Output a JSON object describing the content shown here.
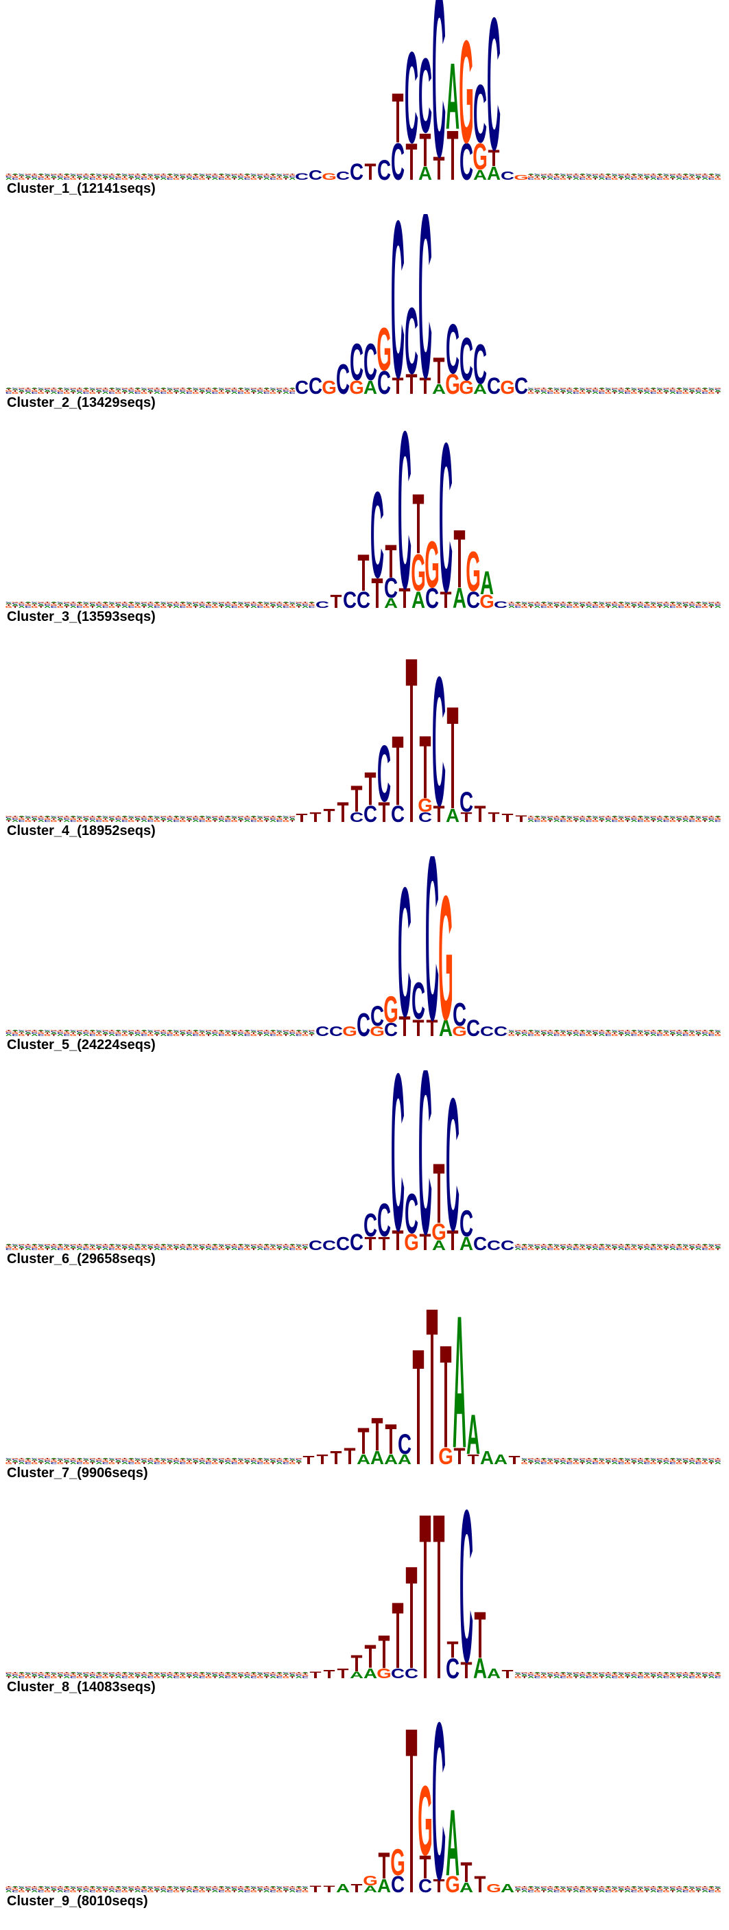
{
  "colors": {
    "A": "#008000",
    "C": "#000080",
    "G": "#ff4500",
    "T": "#800000"
  },
  "clusters": [
    {
      "label": "Cluster_1_(12141seqs)",
      "motif": [
        {
          "l": "C",
          "h": 0.04
        },
        {
          "l": "C",
          "h": 0.06
        },
        {
          "l": "G",
          "h": 0.04
        },
        {
          "l": "C",
          "h": 0.05
        },
        {
          "l": "C",
          "h": 0.1
        },
        {
          "l": "T",
          "h": 0.1
        },
        {
          "l": "C",
          "h": 0.12
        },
        {
          "l": "T",
          "h": 0.3,
          "under": [
            {
              "l": "C",
              "h": 0.22
            }
          ]
        },
        {
          "l": "C",
          "h": 0.55,
          "under": [
            {
              "l": "T",
              "h": 0.22
            }
          ]
        },
        {
          "l": "C",
          "h": 0.45,
          "under": [
            {
              "l": "T",
              "h": 0.2
            },
            {
              "l": "A",
              "h": 0.08
            }
          ]
        },
        {
          "l": "C",
          "h": 1.0,
          "under": [
            {
              "l": "T",
              "h": 0.14
            }
          ]
        },
        {
          "l": "A",
          "h": 0.4,
          "under": [
            {
              "l": "T",
              "h": 0.3
            }
          ]
        },
        {
          "l": "G",
          "h": 0.62,
          "under": [
            {
              "l": "C",
              "h": 0.22
            }
          ]
        },
        {
          "l": "C",
          "h": 0.35,
          "under": [
            {
              "l": "G",
              "h": 0.16
            },
            {
              "l": "A",
              "h": 0.06
            }
          ]
        },
        {
          "l": "C",
          "h": 0.8,
          "under": [
            {
              "l": "T",
              "h": 0.1
            },
            {
              "l": "A",
              "h": 0.08
            }
          ]
        },
        {
          "l": "C",
          "h": 0.05
        },
        {
          "l": "G",
          "h": 0.03
        }
      ]
    },
    {
      "label": "Cluster_2_(13429seqs)",
      "motif": [
        {
          "l": "C",
          "h": 0.08
        },
        {
          "l": "C",
          "h": 0.1
        },
        {
          "l": "G",
          "h": 0.08
        },
        {
          "l": "C",
          "h": 0.18
        },
        {
          "l": "C",
          "h": 0.22,
          "under": [
            {
              "l": "G",
              "h": 0.08
            }
          ]
        },
        {
          "l": "C",
          "h": 0.22,
          "under": [
            {
              "l": "A",
              "h": 0.08
            }
          ]
        },
        {
          "l": "G",
          "h": 0.26,
          "under": [
            {
              "l": "C",
              "h": 0.14
            }
          ]
        },
        {
          "l": "C",
          "h": 0.95,
          "under": [
            {
              "l": "T",
              "h": 0.1
            }
          ]
        },
        {
          "l": "C",
          "h": 0.4,
          "under": [
            {
              "l": "T",
              "h": 0.12
            }
          ]
        },
        {
          "l": "C",
          "h": 1.0,
          "under": [
            {
              "l": "T",
              "h": 0.1
            }
          ]
        },
        {
          "l": "T",
          "h": 0.16,
          "under": [
            {
              "l": "A",
              "h": 0.06
            }
          ]
        },
        {
          "l": "C",
          "h": 0.3,
          "under": [
            {
              "l": "G",
              "h": 0.12
            }
          ]
        },
        {
          "l": "C",
          "h": 0.26,
          "under": [
            {
              "l": "G",
              "h": 0.08
            }
          ]
        },
        {
          "l": "C",
          "h": 0.24,
          "under": [
            {
              "l": "A",
              "h": 0.06
            }
          ]
        },
        {
          "l": "C",
          "h": 0.1
        },
        {
          "l": "G",
          "h": 0.08
        },
        {
          "l": "C",
          "h": 0.1
        }
      ]
    },
    {
      "label": "Cluster_3_(13593seqs)",
      "motif": [
        {
          "l": "C",
          "h": 0.04
        },
        {
          "l": "T",
          "h": 0.08
        },
        {
          "l": "C",
          "h": 0.1
        },
        {
          "l": "T",
          "h": 0.22,
          "under": [
            {
              "l": "C",
              "h": 0.1
            }
          ]
        },
        {
          "l": "C",
          "h": 0.52,
          "under": [
            {
              "l": "T",
              "h": 0.18
            }
          ]
        },
        {
          "l": "T",
          "h": 0.2,
          "under": [
            {
              "l": "C",
              "h": 0.12
            },
            {
              "l": "A",
              "h": 0.06
            }
          ]
        },
        {
          "l": "C",
          "h": 0.95,
          "under": [
            {
              "l": "T",
              "h": 0.12
            }
          ]
        },
        {
          "l": "T",
          "h": 0.36,
          "under": [
            {
              "l": "G",
              "h": 0.22
            },
            {
              "l": "A",
              "h": 0.1
            }
          ]
        },
        {
          "l": "G",
          "h": 0.28,
          "under": [
            {
              "l": "C",
              "h": 0.12
            }
          ]
        },
        {
          "l": "C",
          "h": 0.9,
          "under": [
            {
              "l": "T",
              "h": 0.1
            }
          ]
        },
        {
          "l": "T",
          "h": 0.35,
          "under": [
            {
              "l": "A",
              "h": 0.12
            }
          ]
        },
        {
          "l": "G",
          "h": 0.24,
          "under": [
            {
              "l": "C",
              "h": 0.1
            }
          ]
        },
        {
          "l": "A",
          "h": 0.14,
          "under": [
            {
              "l": "G",
              "h": 0.08
            }
          ]
        },
        {
          "l": "C",
          "h": 0.04
        }
      ]
    },
    {
      "label": "Cluster_4_(18952seqs)",
      "motif": [
        {
          "l": "T",
          "h": 0.05
        },
        {
          "l": "T",
          "h": 0.06
        },
        {
          "l": "T",
          "h": 0.08
        },
        {
          "l": "T",
          "h": 0.12
        },
        {
          "l": "T",
          "h": 0.16,
          "under": [
            {
              "l": "C",
              "h": 0.06
            }
          ]
        },
        {
          "l": "T",
          "h": 0.2,
          "under": [
            {
              "l": "C",
              "h": 0.1
            }
          ]
        },
        {
          "l": "C",
          "h": 0.34,
          "under": [
            {
              "l": "T",
              "h": 0.12
            }
          ]
        },
        {
          "l": "T",
          "h": 0.42,
          "under": [
            {
              "l": "C",
              "h": 0.1
            }
          ]
        },
        {
          "l": "T",
          "h": 1.0
        },
        {
          "l": "T",
          "h": 0.38,
          "under": [
            {
              "l": "G",
              "h": 0.08
            },
            {
              "l": "C",
              "h": 0.06
            }
          ]
        },
        {
          "l": "C",
          "h": 0.78,
          "under": [
            {
              "l": "T",
              "h": 0.1
            }
          ]
        },
        {
          "l": "T",
          "h": 0.62,
          "under": [
            {
              "l": "A",
              "h": 0.08
            }
          ]
        },
        {
          "l": "C",
          "h": 0.12,
          "under": [
            {
              "l": "T",
              "h": 0.06
            }
          ]
        },
        {
          "l": "T",
          "h": 0.1
        },
        {
          "l": "T",
          "h": 0.06
        },
        {
          "l": "T",
          "h": 0.05
        },
        {
          "l": "T",
          "h": 0.04
        }
      ]
    },
    {
      "label": "Cluster_5_(24224seqs)",
      "motif": [
        {
          "l": "C",
          "h": 0.06
        },
        {
          "l": "C",
          "h": 0.06
        },
        {
          "l": "G",
          "h": 0.06
        },
        {
          "l": "C",
          "h": 0.14
        },
        {
          "l": "C",
          "h": 0.12,
          "under": [
            {
              "l": "G",
              "h": 0.06
            }
          ]
        },
        {
          "l": "G",
          "h": 0.16,
          "under": [
            {
              "l": "C",
              "h": 0.08
            }
          ]
        },
        {
          "l": "C",
          "h": 0.78,
          "under": [
            {
              "l": "T",
              "h": 0.12
            }
          ]
        },
        {
          "l": "C",
          "h": 0.22,
          "under": [
            {
              "l": "T",
              "h": 0.1
            }
          ]
        },
        {
          "l": "C",
          "h": 1.0,
          "under": [
            {
              "l": "T",
              "h": 0.1
            }
          ]
        },
        {
          "l": "G",
          "h": 0.75,
          "under": [
            {
              "l": "A",
              "h": 0.1
            }
          ]
        },
        {
          "l": "C",
          "h": 0.14,
          "under": [
            {
              "l": "G",
              "h": 0.06
            }
          ]
        },
        {
          "l": "C",
          "h": 0.1
        },
        {
          "l": "C",
          "h": 0.06
        },
        {
          "l": "C",
          "h": 0.06
        }
      ]
    },
    {
      "label": "Cluster_6_(29658seqs)",
      "motif": [
        {
          "l": "C",
          "h": 0.06
        },
        {
          "l": "C",
          "h": 0.06
        },
        {
          "l": "C",
          "h": 0.08
        },
        {
          "l": "C",
          "h": 0.1
        },
        {
          "l": "C",
          "h": 0.14,
          "under": [
            {
              "l": "T",
              "h": 0.08
            }
          ]
        },
        {
          "l": "C",
          "h": 0.2,
          "under": [
            {
              "l": "T",
              "h": 0.08
            }
          ]
        },
        {
          "l": "C",
          "h": 0.95,
          "under": [
            {
              "l": "T",
              "h": 0.12
            }
          ]
        },
        {
          "l": "C",
          "h": 0.24,
          "under": [
            {
              "l": "G",
              "h": 0.1
            }
          ]
        },
        {
          "l": "C",
          "h": 1.0,
          "under": [
            {
              "l": "T",
              "h": 0.1
            }
          ]
        },
        {
          "l": "T",
          "h": 0.36,
          "under": [
            {
              "l": "G",
              "h": 0.1
            },
            {
              "l": "A",
              "h": 0.06
            }
          ]
        },
        {
          "l": "C",
          "h": 0.8,
          "under": [
            {
              "l": "T",
              "h": 0.12
            }
          ]
        },
        {
          "l": "C",
          "h": 0.16,
          "under": [
            {
              "l": "A",
              "h": 0.08
            }
          ]
        },
        {
          "l": "C",
          "h": 0.08
        },
        {
          "l": "C",
          "h": 0.06
        },
        {
          "l": "C",
          "h": 0.06
        }
      ]
    },
    {
      "label": "Cluster_7_(9906seqs)",
      "motif": [
        {
          "l": "T",
          "h": 0.05
        },
        {
          "l": "T",
          "h": 0.06
        },
        {
          "l": "T",
          "h": 0.08
        },
        {
          "l": "T",
          "h": 0.1
        },
        {
          "l": "T",
          "h": 0.16,
          "under": [
            {
              "l": "A",
              "h": 0.06
            }
          ]
        },
        {
          "l": "T",
          "h": 0.2,
          "under": [
            {
              "l": "A",
              "h": 0.08
            }
          ]
        },
        {
          "l": "T",
          "h": 0.18,
          "under": [
            {
              "l": "A",
              "h": 0.06
            }
          ]
        },
        {
          "l": "C",
          "h": 0.12,
          "under": [
            {
              "l": "A",
              "h": 0.06
            }
          ]
        },
        {
          "l": "T",
          "h": 0.7
        },
        {
          "l": "T",
          "h": 0.95
        },
        {
          "l": "T",
          "h": 0.62,
          "under": [
            {
              "l": "G",
              "h": 0.1
            }
          ]
        },
        {
          "l": "A",
          "h": 0.8,
          "under": [
            {
              "l": "T",
              "h": 0.1
            }
          ]
        },
        {
          "l": "A",
          "h": 0.24,
          "under": [
            {
              "l": "T",
              "h": 0.06
            }
          ]
        },
        {
          "l": "A",
          "h": 0.08
        },
        {
          "l": "A",
          "h": 0.06
        },
        {
          "l": "T",
          "h": 0.05
        }
      ]
    },
    {
      "label": "Cluster_8_(14083seqs)",
      "motif": [
        {
          "l": "T",
          "h": 0.04
        },
        {
          "l": "T",
          "h": 0.05
        },
        {
          "l": "T",
          "h": 0.06
        },
        {
          "l": "T",
          "h": 0.1,
          "under": [
            {
              "l": "A",
              "h": 0.04
            }
          ]
        },
        {
          "l": "T",
          "h": 0.14,
          "under": [
            {
              "l": "A",
              "h": 0.06
            }
          ]
        },
        {
          "l": "T",
          "h": 0.2,
          "under": [
            {
              "l": "G",
              "h": 0.06
            }
          ]
        },
        {
          "l": "T",
          "h": 0.4,
          "under": [
            {
              "l": "C",
              "h": 0.06
            }
          ]
        },
        {
          "l": "T",
          "h": 0.62,
          "under": [
            {
              "l": "C",
              "h": 0.06
            }
          ]
        },
        {
          "l": "T",
          "h": 1.0
        },
        {
          "l": "T",
          "h": 1.0
        },
        {
          "l": "T",
          "h": 0.1,
          "under": [
            {
              "l": "C",
              "h": 0.12
            }
          ]
        },
        {
          "l": "C",
          "h": 0.92,
          "under": [
            {
              "l": "T",
              "h": 0.1
            }
          ]
        },
        {
          "l": "T",
          "h": 0.28,
          "under": [
            {
              "l": "A",
              "h": 0.12
            }
          ]
        },
        {
          "l": "A",
          "h": 0.06
        },
        {
          "l": "T",
          "h": 0.05
        }
      ]
    },
    {
      "label": "Cluster_9_(8010seqs)",
      "motif": [
        {
          "l": "T",
          "h": 0.04
        },
        {
          "l": "T",
          "h": 0.04
        },
        {
          "l": "A",
          "h": 0.05
        },
        {
          "l": "T",
          "h": 0.05
        },
        {
          "l": "G",
          "h": 0.06,
          "under": [
            {
              "l": "A",
              "h": 0.04
            }
          ]
        },
        {
          "l": "T",
          "h": 0.16,
          "under": [
            {
              "l": "A",
              "h": 0.08
            }
          ]
        },
        {
          "l": "G",
          "h": 0.16,
          "under": [
            {
              "l": "C",
              "h": 0.1
            }
          ]
        },
        {
          "l": "T",
          "h": 1.0
        },
        {
          "l": "G",
          "h": 0.42,
          "under": [
            {
              "l": "T",
              "h": 0.14
            },
            {
              "l": "C",
              "h": 0.08
            }
          ]
        },
        {
          "l": "C",
          "h": 0.95,
          "under": [
            {
              "l": "T",
              "h": 0.08
            }
          ]
        },
        {
          "l": "A",
          "h": 0.4,
          "under": [
            {
              "l": "G",
              "h": 0.1
            }
          ]
        },
        {
          "l": "T",
          "h": 0.12,
          "under": [
            {
              "l": "A",
              "h": 0.06
            }
          ]
        },
        {
          "l": "T",
          "h": 0.1
        },
        {
          "l": "G",
          "h": 0.05
        },
        {
          "l": "A",
          "h": 0.05
        }
      ]
    }
  ]
}
